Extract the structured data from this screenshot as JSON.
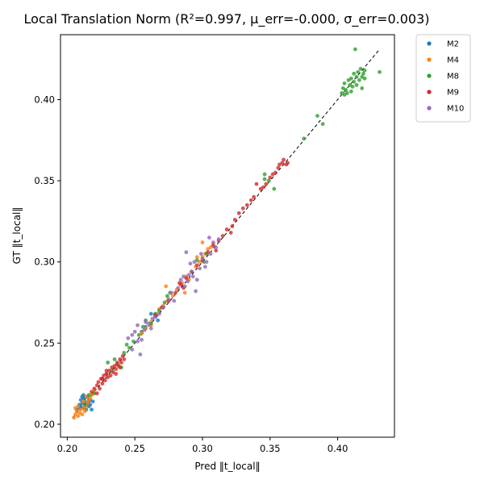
{
  "chart_data": {
    "type": "scatter",
    "title": "Local Translation Norm (R²=0.997, μ_err=-0.000, σ_err=0.003)",
    "xlabel": "Pred ‖t_local‖",
    "ylabel": "GT   ‖t_local‖",
    "xlim": [
      0.195,
      0.442
    ],
    "ylim": [
      0.192,
      0.44
    ],
    "xticks": [
      "0.20",
      "0.25",
      "0.30",
      "0.35",
      "0.40"
    ],
    "yticks": [
      "0.20",
      "0.25",
      "0.30",
      "0.35",
      "0.40"
    ],
    "grid": false,
    "legend_position": "outside-top-right",
    "reference_line": {
      "style": "dashed",
      "color": "#000000",
      "from": [
        0.204,
        0.204
      ],
      "to": [
        0.431,
        0.431
      ]
    },
    "series": [
      {
        "name": "M2",
        "color": "#1f77b4",
        "points": [
          [
            0.207,
            0.209
          ],
          [
            0.209,
            0.212
          ],
          [
            0.21,
            0.215
          ],
          [
            0.211,
            0.217
          ],
          [
            0.212,
            0.21
          ],
          [
            0.213,
            0.214
          ],
          [
            0.214,
            0.209
          ],
          [
            0.215,
            0.213
          ],
          [
            0.216,
            0.211
          ],
          [
            0.217,
            0.215
          ],
          [
            0.218,
            0.209
          ],
          [
            0.211,
            0.213
          ],
          [
            0.213,
            0.216
          ],
          [
            0.215,
            0.217
          ],
          [
            0.21,
            0.211
          ],
          [
            0.212,
            0.216
          ],
          [
            0.214,
            0.212
          ],
          [
            0.216,
            0.214
          ],
          [
            0.209,
            0.21
          ],
          [
            0.217,
            0.212
          ],
          [
            0.219,
            0.214
          ],
          [
            0.212,
            0.218
          ],
          [
            0.262,
            0.268
          ],
          [
            0.267,
            0.264
          ],
          [
            0.258,
            0.26
          ],
          [
            0.255,
            0.257
          ]
        ]
      },
      {
        "name": "M4",
        "color": "#ff7f0e",
        "points": [
          [
            0.205,
            0.204
          ],
          [
            0.206,
            0.206
          ],
          [
            0.207,
            0.208
          ],
          [
            0.208,
            0.205
          ],
          [
            0.209,
            0.207
          ],
          [
            0.21,
            0.209
          ],
          [
            0.211,
            0.206
          ],
          [
            0.212,
            0.21
          ],
          [
            0.213,
            0.208
          ],
          [
            0.214,
            0.211
          ],
          [
            0.215,
            0.213
          ],
          [
            0.216,
            0.215
          ],
          [
            0.217,
            0.216
          ],
          [
            0.218,
            0.218
          ],
          [
            0.219,
            0.219
          ],
          [
            0.22,
            0.221
          ],
          [
            0.208,
            0.211
          ],
          [
            0.212,
            0.214
          ],
          [
            0.206,
            0.21
          ],
          [
            0.214,
            0.217
          ],
          [
            0.255,
            0.256
          ],
          [
            0.258,
            0.259
          ],
          [
            0.262,
            0.263
          ],
          [
            0.266,
            0.268
          ],
          [
            0.27,
            0.272
          ],
          [
            0.274,
            0.276
          ],
          [
            0.278,
            0.279
          ],
          [
            0.281,
            0.283
          ],
          [
            0.285,
            0.287
          ],
          [
            0.288,
            0.291
          ],
          [
            0.292,
            0.294
          ],
          [
            0.295,
            0.297
          ],
          [
            0.298,
            0.3
          ],
          [
            0.3,
            0.303
          ],
          [
            0.302,
            0.305
          ],
          [
            0.304,
            0.308
          ],
          [
            0.306,
            0.309
          ],
          [
            0.308,
            0.311
          ],
          [
            0.273,
            0.285
          ],
          [
            0.287,
            0.281
          ],
          [
            0.29,
            0.289
          ],
          [
            0.271,
            0.273
          ],
          [
            0.296,
            0.303
          ],
          [
            0.3,
            0.312
          ],
          [
            0.262,
            0.261
          ],
          [
            0.268,
            0.271
          ]
        ]
      },
      {
        "name": "M8",
        "color": "#2ca02c",
        "points": [
          [
            0.213,
            0.212
          ],
          [
            0.216,
            0.218
          ],
          [
            0.22,
            0.219
          ],
          [
            0.226,
            0.228
          ],
          [
            0.229,
            0.231
          ],
          [
            0.23,
            0.238
          ],
          [
            0.233,
            0.233
          ],
          [
            0.235,
            0.24
          ],
          [
            0.237,
            0.237
          ],
          [
            0.24,
            0.235
          ],
          [
            0.242,
            0.244
          ],
          [
            0.244,
            0.249
          ],
          [
            0.246,
            0.247
          ],
          [
            0.249,
            0.251
          ],
          [
            0.253,
            0.255
          ],
          [
            0.256,
            0.26
          ],
          [
            0.258,
            0.264
          ],
          [
            0.262,
            0.262
          ],
          [
            0.265,
            0.268
          ],
          [
            0.268,
            0.27
          ],
          [
            0.272,
            0.275
          ],
          [
            0.274,
            0.279
          ],
          [
            0.276,
            0.281
          ],
          [
            0.296,
            0.301
          ],
          [
            0.301,
            0.3
          ],
          [
            0.303,
            0.305
          ],
          [
            0.346,
            0.351
          ],
          [
            0.346,
            0.354
          ],
          [
            0.349,
            0.35
          ],
          [
            0.353,
            0.345
          ],
          [
            0.375,
            0.376
          ],
          [
            0.385,
            0.39
          ],
          [
            0.389,
            0.385
          ],
          [
            0.403,
            0.404
          ],
          [
            0.404,
            0.407
          ],
          [
            0.405,
            0.41
          ],
          [
            0.406,
            0.406
          ],
          [
            0.407,
            0.404
          ],
          [
            0.408,
            0.412
          ],
          [
            0.409,
            0.409
          ],
          [
            0.41,
            0.405
          ],
          [
            0.41,
            0.413
          ],
          [
            0.411,
            0.408
          ],
          [
            0.412,
            0.416
          ],
          [
            0.412,
            0.411
          ],
          [
            0.413,
            0.431
          ],
          [
            0.414,
            0.414
          ],
          [
            0.414,
            0.409
          ],
          [
            0.415,
            0.417
          ],
          [
            0.416,
            0.412
          ],
          [
            0.417,
            0.419
          ],
          [
            0.418,
            0.414
          ],
          [
            0.418,
            0.407
          ],
          [
            0.419,
            0.416
          ],
          [
            0.42,
            0.413
          ],
          [
            0.42,
            0.418
          ],
          [
            0.431,
            0.417
          ],
          [
            0.405,
            0.403
          ]
        ]
      },
      {
        "name": "M9",
        "color": "#d62728",
        "points": [
          [
            0.218,
            0.22
          ],
          [
            0.22,
            0.222
          ],
          [
            0.222,
            0.224
          ],
          [
            0.223,
            0.226
          ],
          [
            0.224,
            0.222
          ],
          [
            0.225,
            0.228
          ],
          [
            0.226,
            0.225
          ],
          [
            0.227,
            0.23
          ],
          [
            0.228,
            0.227
          ],
          [
            0.229,
            0.231
          ],
          [
            0.23,
            0.229
          ],
          [
            0.231,
            0.233
          ],
          [
            0.232,
            0.23
          ],
          [
            0.233,
            0.235
          ],
          [
            0.234,
            0.232
          ],
          [
            0.235,
            0.236
          ],
          [
            0.236,
            0.234
          ],
          [
            0.237,
            0.238
          ],
          [
            0.238,
            0.236
          ],
          [
            0.239,
            0.24
          ],
          [
            0.24,
            0.238
          ],
          [
            0.241,
            0.242
          ],
          [
            0.242,
            0.24
          ],
          [
            0.222,
            0.219
          ],
          [
            0.226,
            0.228
          ],
          [
            0.229,
            0.233
          ],
          [
            0.236,
            0.231
          ],
          [
            0.239,
            0.235
          ],
          [
            0.265,
            0.267
          ],
          [
            0.27,
            0.272
          ],
          [
            0.275,
            0.276
          ],
          [
            0.28,
            0.281
          ],
          [
            0.284,
            0.286
          ],
          [
            0.288,
            0.29
          ],
          [
            0.292,
            0.294
          ],
          [
            0.296,
            0.298
          ],
          [
            0.3,
            0.301
          ],
          [
            0.304,
            0.306
          ],
          [
            0.308,
            0.31
          ],
          [
            0.312,
            0.313
          ],
          [
            0.315,
            0.316
          ],
          [
            0.318,
            0.32
          ],
          [
            0.321,
            0.318
          ],
          [
            0.322,
            0.322
          ],
          [
            0.324,
            0.326
          ],
          [
            0.327,
            0.33
          ],
          [
            0.33,
            0.333
          ],
          [
            0.333,
            0.335
          ],
          [
            0.336,
            0.338
          ],
          [
            0.338,
            0.34
          ],
          [
            0.34,
            0.348
          ],
          [
            0.343,
            0.345
          ],
          [
            0.345,
            0.346
          ],
          [
            0.347,
            0.348
          ],
          [
            0.35,
            0.352
          ],
          [
            0.352,
            0.354
          ],
          [
            0.354,
            0.355
          ],
          [
            0.356,
            0.358
          ],
          [
            0.357,
            0.36
          ],
          [
            0.359,
            0.361
          ],
          [
            0.36,
            0.363
          ],
          [
            0.362,
            0.36
          ],
          [
            0.363,
            0.361
          ],
          [
            0.286,
            0.284
          ],
          [
            0.283,
            0.287
          ],
          [
            0.31,
            0.307
          ]
        ]
      },
      {
        "name": "M10",
        "color": "#9467bd",
        "points": [
          [
            0.245,
            0.253
          ],
          [
            0.248,
            0.255
          ],
          [
            0.25,
            0.257
          ],
          [
            0.252,
            0.261
          ],
          [
            0.254,
            0.243
          ],
          [
            0.255,
            0.252
          ],
          [
            0.257,
            0.258
          ],
          [
            0.258,
            0.263
          ],
          [
            0.26,
            0.262
          ],
          [
            0.262,
            0.259
          ],
          [
            0.263,
            0.265
          ],
          [
            0.265,
            0.266
          ],
          [
            0.268,
            0.268
          ],
          [
            0.271,
            0.272
          ],
          [
            0.275,
            0.277
          ],
          [
            0.277,
            0.281
          ],
          [
            0.279,
            0.276
          ],
          [
            0.282,
            0.284
          ],
          [
            0.284,
            0.289
          ],
          [
            0.286,
            0.291
          ],
          [
            0.288,
            0.306
          ],
          [
            0.289,
            0.288
          ],
          [
            0.29,
            0.292
          ],
          [
            0.291,
            0.299
          ],
          [
            0.292,
            0.294
          ],
          [
            0.293,
            0.291
          ],
          [
            0.294,
            0.3
          ],
          [
            0.295,
            0.282
          ],
          [
            0.296,
            0.289
          ],
          [
            0.298,
            0.296
          ],
          [
            0.3,
            0.302
          ],
          [
            0.302,
            0.297
          ],
          [
            0.303,
            0.3
          ],
          [
            0.305,
            0.315
          ],
          [
            0.306,
            0.305
          ],
          [
            0.308,
            0.312
          ],
          [
            0.31,
            0.309
          ],
          [
            0.312,
            0.314
          ],
          [
            0.248,
            0.246
          ],
          [
            0.252,
            0.251
          ],
          [
            0.287,
            0.285
          ],
          [
            0.299,
            0.305
          ]
        ]
      }
    ]
  }
}
